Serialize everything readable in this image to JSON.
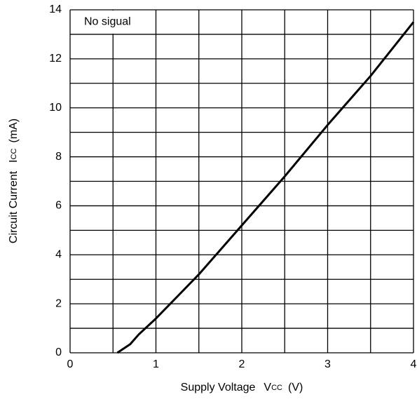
{
  "chart_data": {
    "type": "line",
    "xlabel": {
      "text": "Supply Voltage",
      "symbol": "V",
      "subscript": "CC",
      "unit": "(V)"
    },
    "ylabel": {
      "text": "Circuit Current",
      "symbol": "I",
      "subscript": "CC",
      "unit": "(mA)"
    },
    "annotation": "No sigual",
    "x": [
      0.55,
      0.7,
      0.8,
      1.0,
      1.5,
      2.0,
      2.5,
      3.0,
      3.5,
      4.0
    ],
    "series": [
      {
        "name": "No sigual",
        "color": "#000000",
        "values": [
          0,
          0.35,
          0.75,
          1.4,
          3.2,
          5.2,
          7.2,
          9.3,
          11.3,
          13.5
        ]
      }
    ],
    "xlim": [
      0,
      4
    ],
    "xticks": [
      0,
      1,
      2,
      3,
      4
    ],
    "x_minor_ticks": [
      0.5,
      1.5,
      2.5,
      3.5
    ],
    "ylim": [
      0,
      14
    ],
    "yticks": [
      0,
      2,
      4,
      6,
      8,
      10,
      12,
      14
    ],
    "y_minor_ticks": [
      1,
      3,
      5,
      7,
      9,
      11,
      13
    ],
    "grid": true
  }
}
